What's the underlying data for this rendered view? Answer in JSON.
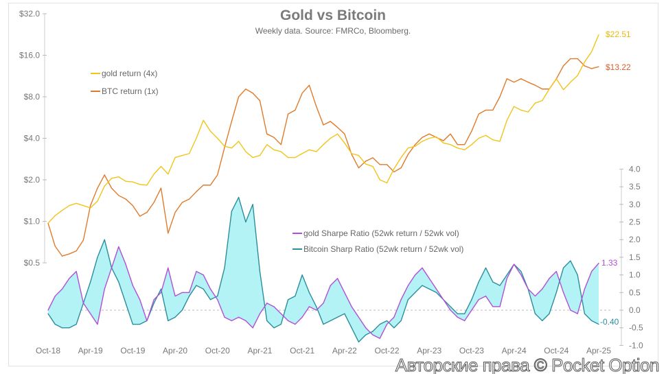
{
  "chart_data": {
    "type": "line",
    "title": "Gold vs Bitcoin",
    "subtitle": "Weekly data.  Source: FMRCo, Bloomberg.",
    "x": [
      "Oct-18",
      "Nov-18",
      "Dec-18",
      "Jan-19",
      "Feb-19",
      "Mar-19",
      "Apr-19",
      "May-19",
      "Jun-19",
      "Jul-19",
      "Aug-19",
      "Sep-19",
      "Oct-19",
      "Nov-19",
      "Dec-19",
      "Jan-20",
      "Feb-20",
      "Mar-20",
      "Apr-20",
      "May-20",
      "Jun-20",
      "Jul-20",
      "Aug-20",
      "Sep-20",
      "Oct-20",
      "Nov-20",
      "Dec-20",
      "Jan-21",
      "Feb-21",
      "Mar-21",
      "Apr-21",
      "May-21",
      "Jun-21",
      "Jul-21",
      "Aug-21",
      "Sep-21",
      "Oct-21",
      "Nov-21",
      "Dec-21",
      "Jan-22",
      "Feb-22",
      "Mar-22",
      "Apr-22",
      "May-22",
      "Jun-22",
      "Jul-22",
      "Aug-22",
      "Sep-22",
      "Oct-22",
      "Nov-22",
      "Dec-22",
      "Jan-23",
      "Feb-23",
      "Mar-23",
      "Apr-23",
      "May-23",
      "Jun-23",
      "Jul-23",
      "Aug-23",
      "Sep-23",
      "Oct-23",
      "Nov-23",
      "Dec-23",
      "Jan-24",
      "Feb-24",
      "Mar-24",
      "Apr-24",
      "May-24",
      "Jun-24",
      "Jul-24",
      "Aug-24",
      "Sep-24",
      "Oct-24",
      "Nov-24",
      "Dec-24",
      "Jan-25",
      "Feb-25",
      "Mar-25",
      "Apr-25"
    ],
    "x_tick_labels": [
      "Oct-18",
      "Apr-19",
      "Oct-19",
      "Apr-20",
      "Oct-20",
      "Apr-21",
      "Oct-21",
      "Apr-22",
      "Oct-22",
      "Apr-23",
      "Oct-23",
      "Apr-24",
      "Oct-24",
      "Apr-25"
    ],
    "y_left": {
      "scale": "log2",
      "range": [
        0.5,
        32
      ],
      "tick_labels": [
        "$32.0",
        "$16.0",
        "$8.0",
        "$4.0",
        "$2.0",
        "$1.0",
        "$0.5"
      ],
      "tick_values": [
        32,
        16,
        8,
        4,
        2,
        1,
        0.5
      ]
    },
    "y_right": {
      "scale": "linear",
      "range": [
        -1.0,
        4.0
      ],
      "tick_labels": [
        "4.0",
        "3.5",
        "3.0",
        "2.5",
        "2.0",
        "1.5",
        "1.0",
        "0.5",
        "0.0",
        "-0.5",
        "-1.0"
      ],
      "tick_values": [
        4,
        3.5,
        3,
        2.5,
        2,
        1.5,
        1,
        0.5,
        0,
        -0.5,
        -1
      ]
    },
    "grid": false,
    "series": [
      {
        "name": "gold return (4x)",
        "axis": "left",
        "color": "#f0c419",
        "end_label": "$22.51",
        "values": [
          0.97,
          1.1,
          1.2,
          1.3,
          1.35,
          1.3,
          1.25,
          1.4,
          1.8,
          2.05,
          2.1,
          1.95,
          1.93,
          1.85,
          1.83,
          2.2,
          2.5,
          2.2,
          2.9,
          3.0,
          3.1,
          4.0,
          5.4,
          4.5,
          4.0,
          3.5,
          3.4,
          3.8,
          3.2,
          2.9,
          3.0,
          3.6,
          3.3,
          3.2,
          2.9,
          2.9,
          3.1,
          3.3,
          3.2,
          3.6,
          4.0,
          4.3,
          3.7,
          3.1,
          3.0,
          2.6,
          2.5,
          2.0,
          1.9,
          2.4,
          2.9,
          3.4,
          3.5,
          3.8,
          4.0,
          4.1,
          3.7,
          3.6,
          3.4,
          3.3,
          3.6,
          4.0,
          4.2,
          3.9,
          3.8,
          5.4,
          6.8,
          6.4,
          6.2,
          7.2,
          7.5,
          9.1,
          10.8,
          9.0,
          10.2,
          11.4,
          14.3,
          17.0,
          22.51
        ]
      },
      {
        "name": "BTC return (1x)",
        "axis": "left",
        "color": "#e07a2a",
        "end_label": "$13.22",
        "end_label_color": "#dc5f2c",
        "values": [
          0.97,
          0.66,
          0.56,
          0.58,
          0.61,
          0.73,
          1.3,
          1.74,
          2.17,
          1.74,
          1.54,
          1.45,
          1.3,
          1.09,
          1.16,
          1.37,
          1.74,
          0.82,
          1.16,
          1.37,
          1.45,
          1.64,
          1.83,
          1.83,
          2.17,
          3.43,
          5.3,
          8.0,
          9.1,
          8.5,
          7.5,
          4.3,
          4.06,
          3.6,
          6.0,
          6.4,
          8.5,
          9.7,
          6.8,
          5.0,
          5.3,
          4.8,
          4.3,
          3.06,
          2.44,
          2.73,
          2.89,
          2.58,
          2.58,
          2.28,
          2.44,
          3.06,
          3.6,
          4.06,
          4.3,
          4.06,
          3.84,
          4.3,
          3.6,
          3.6,
          4.5,
          6.0,
          6.4,
          6.4,
          8.0,
          10.8,
          10.2,
          10.8,
          10.2,
          9.7,
          9.1,
          9.1,
          10.8,
          13.4,
          15.1,
          15.1,
          13.4,
          12.8,
          13.22
        ]
      },
      {
        "name": "gold Sharpe Ratio (52wk return / 52wk vol)",
        "axis": "right",
        "color": "#b04fd4",
        "end_label": "1.33",
        "values": [
          0.0,
          0.4,
          0.6,
          0.9,
          1.1,
          0.2,
          -0.1,
          -0.4,
          0.6,
          1.2,
          1.8,
          1.3,
          0.7,
          0.3,
          -0.3,
          0.3,
          0.5,
          1.2,
          0.4,
          0.5,
          0.5,
          1.1,
          1.0,
          0.6,
          0.3,
          -0.2,
          -0.3,
          -0.2,
          -0.3,
          -0.5,
          -0.1,
          0.2,
          0.1,
          -0.1,
          -0.3,
          -0.4,
          -0.2,
          0.1,
          0.0,
          0.2,
          0.7,
          0.9,
          0.5,
          0.1,
          -0.2,
          -0.5,
          -0.7,
          -0.8,
          -0.4,
          -0.2,
          0.3,
          0.7,
          1.0,
          1.2,
          0.9,
          0.6,
          0.3,
          0.0,
          -0.2,
          -0.3,
          0.0,
          0.3,
          0.4,
          0.1,
          0.1,
          0.9,
          1.3,
          1.0,
          0.6,
          0.4,
          0.6,
          0.9,
          1.1,
          0.5,
          0.0,
          -0.1,
          0.6,
          1.1,
          1.33
        ]
      },
      {
        "name": "Bitcoin Sharp Ratio (52wk return / 52wk vol)",
        "axis": "right",
        "color": "#2b8e9c",
        "end_label": "-0.40",
        "values": [
          -0.1,
          -0.4,
          -0.5,
          -0.5,
          -0.4,
          0.2,
          0.8,
          1.5,
          2.0,
          1.2,
          0.8,
          0.2,
          -0.4,
          -0.4,
          -0.3,
          0.2,
          0.6,
          -0.3,
          -0.2,
          0.0,
          0.4,
          0.7,
          0.6,
          0.3,
          0.4,
          1.2,
          2.8,
          3.2,
          2.5,
          3.0,
          1.1,
          -0.3,
          -0.5,
          -0.4,
          0.3,
          0.4,
          1.0,
          0.5,
          0.1,
          -0.4,
          -0.3,
          -0.2,
          -0.1,
          -0.5,
          -0.9,
          -0.7,
          -0.6,
          -0.4,
          -0.3,
          -0.5,
          -0.3,
          0.3,
          0.5,
          0.7,
          0.6,
          0.5,
          0.3,
          0.1,
          -0.1,
          -0.1,
          0.3,
          0.8,
          1.2,
          0.8,
          0.7,
          1.0,
          1.3,
          1.1,
          0.6,
          -0.1,
          -0.3,
          -0.1,
          0.5,
          1.2,
          1.4,
          1.0,
          -0.1,
          -0.3,
          -0.4
        ]
      }
    ],
    "fill_between_sharpe_color": "#b3f2f5",
    "zero_line": "dashed"
  },
  "watermark": "Авторские права © Pocket Option"
}
